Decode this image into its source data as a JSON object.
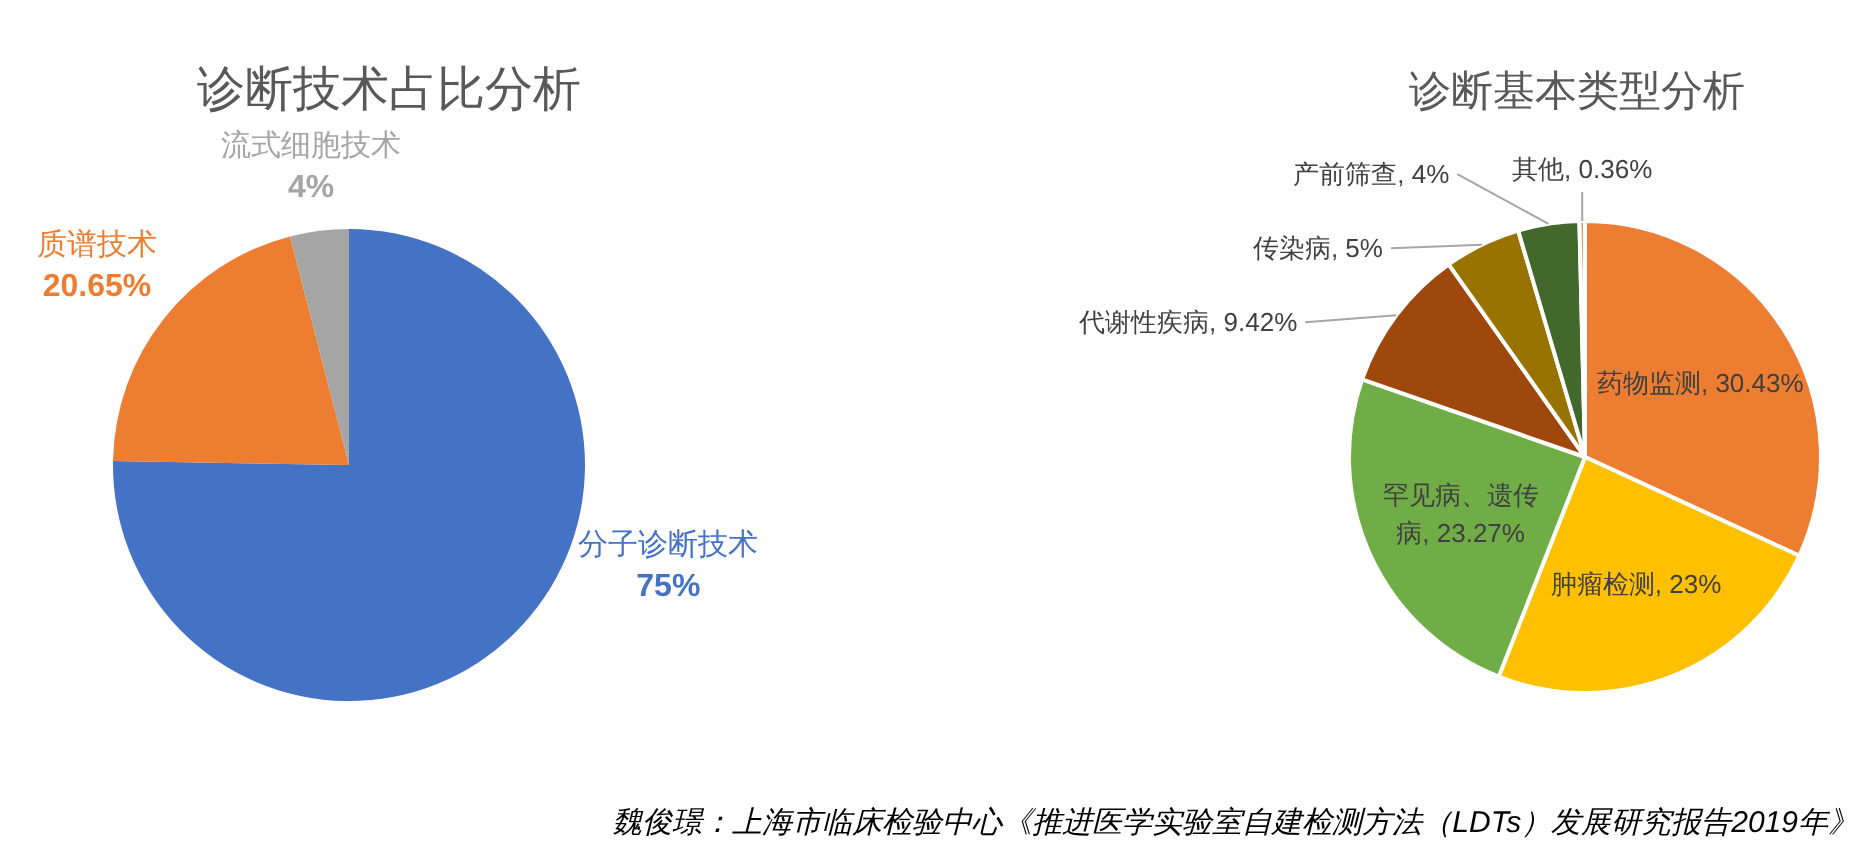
{
  "chart_data": [
    {
      "type": "pie",
      "title": "诊断技术占比分析",
      "categories": [
        "分子诊断技术",
        "质谱技术",
        "流式细胞技术"
      ],
      "values": [
        75,
        20.65,
        4
      ],
      "colors": [
        "#4472c4",
        "#ed7d31",
        "#a5a5a5"
      ],
      "value_labels": [
        "75%",
        "20.65%",
        "4%"
      ]
    },
    {
      "type": "pie",
      "title": "诊断基本类型分析",
      "categories": [
        "药物监测",
        "肿瘤检测",
        "罕见病、遗传病",
        "代谢性疾病",
        "传染病",
        "产前筛查",
        "其他"
      ],
      "values": [
        30.43,
        23,
        23.27,
        9.42,
        5,
        4,
        0.36
      ],
      "colors": [
        "#ed7d31",
        "#ffc000",
        "#70ad47",
        "#9e480e",
        "#997300",
        "#43682b",
        "#f1975a"
      ],
      "value_labels": [
        "30.43%",
        "23%",
        "23.27%",
        "9.42%",
        "5%",
        "4%",
        "0.36%"
      ],
      "annotations": [
        "魏俊璟：上海市临床检验中心《推进医学实验室自建检测方法（LDTs）发展研究报告2019年》"
      ]
    }
  ]
}
